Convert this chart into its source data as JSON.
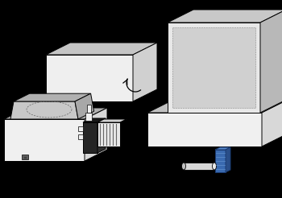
{
  "background_color": "#000000",
  "top_color_light": "#c8c8c8",
  "top_color_mid": "#b8b8b8",
  "side_color": "#a0a0a0",
  "front_color_white": "#f0f0f0",
  "front_color_light": "#e8e8e8",
  "dark_color": "#282828",
  "dark_top": "#202020",
  "gray_mid": "#909090",
  "blue_light": "#8ab4d4",
  "blue_dark": "#3060a0",
  "blue_mid": "#4878c0",
  "white": "#ffffff",
  "lc": "#000000",
  "dashes": [
    3,
    2
  ],
  "lw": 0.7
}
